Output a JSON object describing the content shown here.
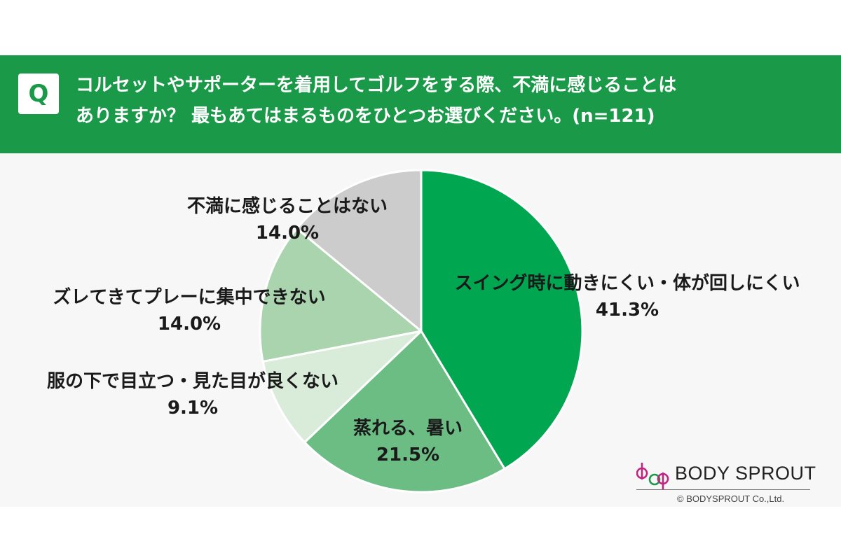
{
  "header": {
    "badge": "Q",
    "question_line1": "コルセットやサポーターを着用してゴルフをする際、不満に感じることは",
    "question_line2": "ありますか？ 最もあてはまるものをひとつお選びください。(n=121)"
  },
  "chart_data": {
    "type": "pie",
    "start_angle_deg": 0,
    "direction": "clockwise",
    "slices": [
      {
        "label": "スイング時に動きにくい・体が回しにくい",
        "value": 41.3,
        "display": "41.3%",
        "color": "#00a650"
      },
      {
        "label": "蒸れる、暑い",
        "value": 21.5,
        "display": "21.5%",
        "color": "#6cbd84"
      },
      {
        "label": "服の下で目立つ・見た目が良くない",
        "value": 9.1,
        "display": "9.1%",
        "color": "#d9ecd9"
      },
      {
        "label": "ズレてきてプレーに集中できない",
        "value": 14.0,
        "display": "14.0%",
        "color": "#a9d4ad"
      },
      {
        "label": "不満に感じることはない",
        "value": 14.0,
        "display": "14.0%",
        "color": "#cccccc"
      }
    ]
  },
  "brand": {
    "name": "BODY SPROUT",
    "copyright": "© BODYSPROUT Co.,Ltd.",
    "colors": {
      "magenta": "#c2237f",
      "green": "#1a9a48"
    }
  }
}
